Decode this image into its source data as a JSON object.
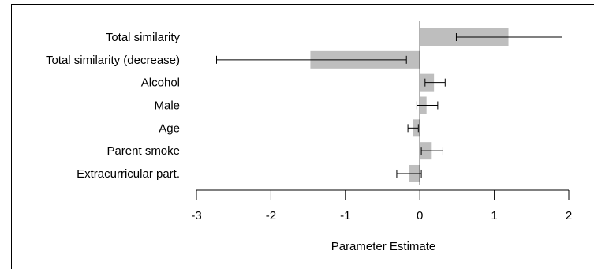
{
  "chart_data": {
    "type": "bar",
    "orientation": "horizontal",
    "categories": [
      "Total similarity",
      "Total similarity (decrease)",
      "Alcohol",
      "Male",
      "Age",
      "Parent smoke",
      "Extracurricular part."
    ],
    "values": [
      1.19,
      -1.47,
      0.19,
      0.09,
      -0.09,
      0.16,
      -0.15
    ],
    "error_low": [
      0.49,
      -2.73,
      0.07,
      -0.04,
      -0.16,
      0.02,
      -0.31
    ],
    "error_high": [
      1.91,
      -0.18,
      0.34,
      0.24,
      -0.02,
      0.31,
      0.02
    ],
    "xlim": [
      -3,
      2
    ],
    "xticks": [
      "-3",
      "-2",
      "-1",
      "0",
      "1",
      "2"
    ],
    "xlabel": "Parameter Estimate",
    "ylabel": "",
    "title": "",
    "grid": false,
    "legend": "none",
    "colors": {
      "bar": "#bebebe",
      "whisker": "#000000",
      "axis": "#000000"
    }
  }
}
